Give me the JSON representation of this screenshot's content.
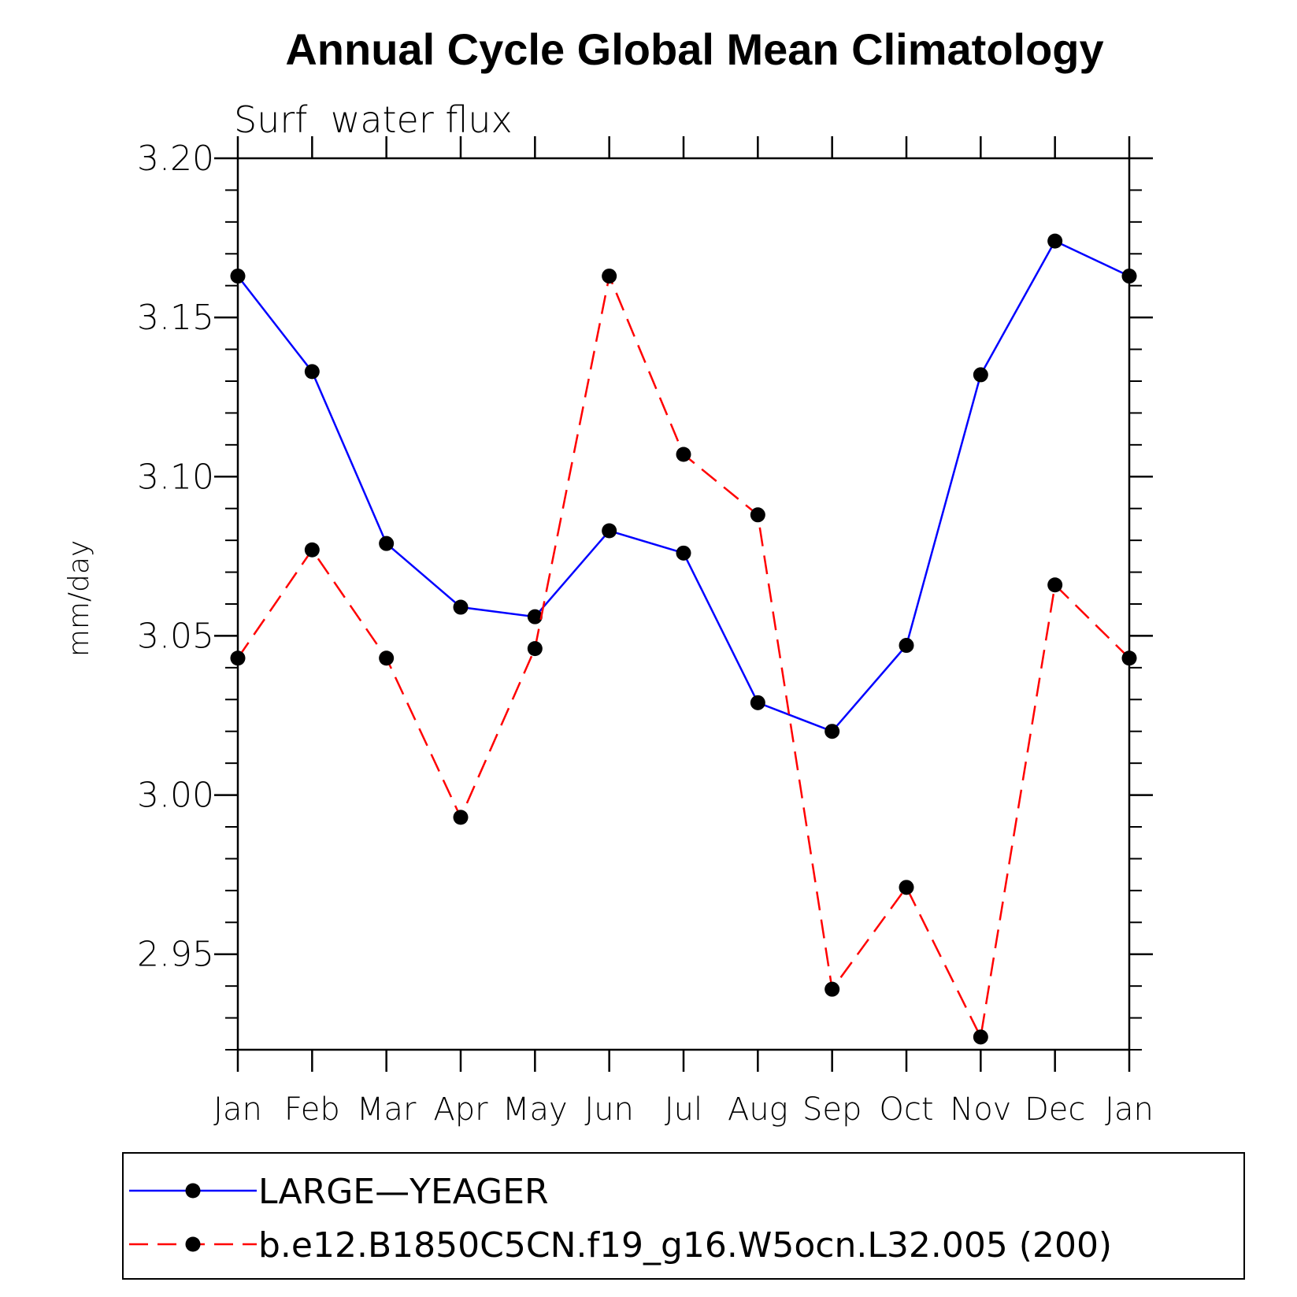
{
  "chart_data": {
    "type": "line",
    "title": "Annual Cycle Global Mean Climatology",
    "subtitle": "Surf  water flux",
    "xlabel": "",
    "ylabel": "mm/day",
    "categories": [
      "Jan",
      "Feb",
      "Mar",
      "Apr",
      "May",
      "Jun",
      "Jul",
      "Aug",
      "Sep",
      "Oct",
      "Nov",
      "Dec",
      "Jan"
    ],
    "ylim": [
      2.92,
      3.2
    ],
    "yticks": [
      "3.20",
      "3.15",
      "3.10",
      "3.05",
      "3.00",
      "2.95"
    ],
    "grid": false,
    "legend_position": "bottom",
    "series": [
      {
        "name": "LARGE—YEAGER",
        "color": "#0000ff",
        "line_style": "solid",
        "marker": "filled-circle",
        "values": [
          3.163,
          3.133,
          3.079,
          3.059,
          3.056,
          3.083,
          3.076,
          3.029,
          3.02,
          3.047,
          3.132,
          3.174,
          3.163
        ]
      },
      {
        "name": "b.e12.B1850C5CN.f19_g16.W5ocn.L32.005 (200)",
        "color": "#ff0000",
        "line_style": "dashed",
        "marker": "filled-circle",
        "values": [
          3.043,
          3.077,
          3.043,
          2.993,
          3.046,
          3.163,
          3.107,
          3.088,
          2.939,
          2.971,
          2.924,
          3.066,
          3.043
        ]
      }
    ]
  }
}
